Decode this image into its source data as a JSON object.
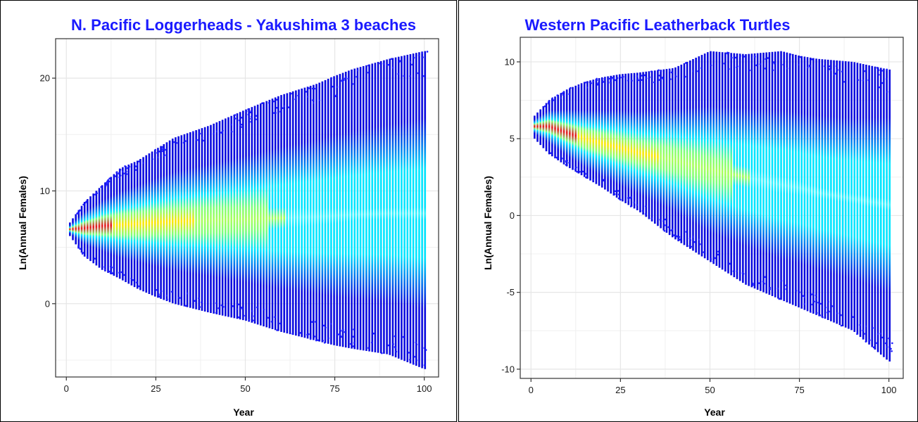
{
  "chart_data": [
    {
      "type": "scatter",
      "title": "N. Pacific Loggerheads - Yakushima 3 beaches",
      "xlabel": "Year",
      "ylabel": "Ln(Annual Females)",
      "xlim": [
        -3,
        104
      ],
      "ylim": [
        -6.5,
        23.5
      ],
      "xticks": [
        0,
        25,
        50,
        75,
        100
      ],
      "yticks": [
        0,
        10,
        20
      ],
      "grid": true,
      "legend": "none",
      "colors": {
        "low_density": "#0a0adf",
        "mid": "#00e5ff",
        "high": "#ffe600",
        "peak": "#e8141e"
      },
      "series": [
        {
          "x": [
            1,
            5,
            10,
            15,
            20,
            25,
            30,
            40,
            50,
            60,
            70,
            75,
            80,
            90,
            100
          ],
          "median": [
            6.6,
            6.7,
            6.9,
            7.0,
            7.1,
            7.2,
            7.3,
            7.4,
            7.5,
            7.6,
            7.7,
            7.8,
            7.9,
            8.0,
            8.0
          ],
          "upper": [
            7.2,
            9.0,
            10.5,
            12.0,
            12.7,
            13.7,
            14.7,
            15.8,
            17.2,
            18.5,
            19.5,
            20.2,
            20.8,
            21.7,
            22.4
          ],
          "lower": [
            6.0,
            4.2,
            3.0,
            2.2,
            1.3,
            0.6,
            0.0,
            -0.8,
            -1.5,
            -2.5,
            -3.3,
            -3.7,
            -4.0,
            -4.5,
            -5.8
          ]
        }
      ]
    },
    {
      "type": "scatter",
      "title": "Western Pacific Leatherback Turtles",
      "xlabel": "Year",
      "ylabel": "Ln(Annual Females)",
      "xlim": [
        -3,
        104
      ],
      "ylim": [
        -10.6,
        11.6
      ],
      "xticks": [
        0,
        25,
        50,
        75,
        100
      ],
      "yticks": [
        -10,
        -5,
        0,
        5,
        10
      ],
      "grid": true,
      "legend": "none",
      "colors": {
        "low_density": "#0a0adf",
        "mid": "#00e5ff",
        "high": "#ffe600",
        "peak": "#e8141e"
      },
      "series": [
        {
          "x": [
            1,
            5,
            10,
            15,
            20,
            25,
            30,
            40,
            50,
            60,
            70,
            75,
            80,
            90,
            100
          ],
          "median": [
            5.8,
            5.8,
            5.4,
            5.0,
            4.7,
            4.4,
            4.1,
            3.6,
            3.0,
            2.5,
            2.0,
            1.8,
            1.5,
            1.1,
            0.7
          ],
          "upper": [
            6.5,
            7.5,
            8.2,
            8.7,
            9.0,
            9.2,
            9.3,
            9.6,
            10.7,
            10.5,
            10.7,
            10.4,
            10.2,
            10.0,
            9.5
          ],
          "lower": [
            5.0,
            4.0,
            3.2,
            2.5,
            1.8,
            1.0,
            0.3,
            -1.5,
            -3.0,
            -4.5,
            -5.5,
            -6.0,
            -6.5,
            -7.5,
            -9.5
          ]
        }
      ]
    }
  ]
}
